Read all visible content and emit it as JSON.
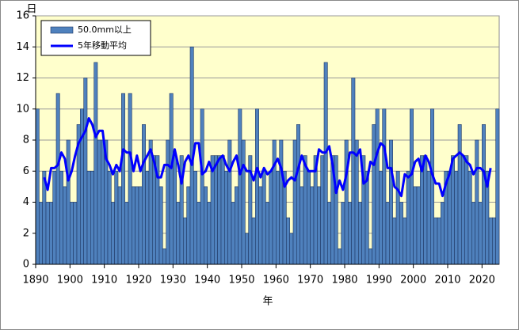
{
  "chart_data": {
    "type": "bar",
    "y_label": "日",
    "x_label": "年",
    "x": [
      1890,
      1891,
      1892,
      1893,
      1894,
      1895,
      1896,
      1897,
      1898,
      1899,
      1900,
      1901,
      1902,
      1903,
      1904,
      1905,
      1906,
      1907,
      1908,
      1909,
      1910,
      1911,
      1912,
      1913,
      1914,
      1915,
      1916,
      1917,
      1918,
      1919,
      1920,
      1921,
      1922,
      1923,
      1924,
      1925,
      1926,
      1927,
      1928,
      1929,
      1930,
      1931,
      1932,
      1933,
      1934,
      1935,
      1936,
      1937,
      1938,
      1939,
      1940,
      1941,
      1942,
      1943,
      1944,
      1945,
      1946,
      1947,
      1948,
      1949,
      1950,
      1951,
      1952,
      1953,
      1954,
      1955,
      1956,
      1957,
      1958,
      1959,
      1960,
      1961,
      1962,
      1963,
      1964,
      1965,
      1966,
      1967,
      1968,
      1969,
      1970,
      1971,
      1972,
      1973,
      1974,
      1975,
      1976,
      1977,
      1978,
      1979,
      1980,
      1981,
      1982,
      1983,
      1984,
      1985,
      1986,
      1987,
      1988,
      1989,
      1990,
      1991,
      1992,
      1993,
      1994,
      1995,
      1996,
      1997,
      1998,
      1999,
      2000,
      2001,
      2002,
      2003,
      2004,
      2005,
      2006,
      2007,
      2008,
      2009,
      2010,
      2011,
      2012,
      2013,
      2014,
      2015,
      2016,
      2017,
      2018,
      2019,
      2020,
      2021,
      2022,
      2023,
      2024
    ],
    "series": [
      {
        "name": "50.0mm以上",
        "type": "bar",
        "color": "#4f81bd",
        "values": [
          10,
          4,
          6,
          4,
          4,
          6,
          11,
          6,
          5,
          8,
          4,
          4,
          9,
          10,
          12,
          6,
          6,
          13,
          8,
          8,
          8,
          6,
          4,
          6,
          5,
          11,
          4,
          11,
          5,
          5,
          5,
          9,
          6,
          8,
          7,
          7,
          5,
          1,
          8,
          11,
          7,
          4,
          7,
          3,
          5,
          14,
          6,
          4,
          10,
          5,
          4,
          7,
          7,
          7,
          7,
          6,
          8,
          4,
          5,
          10,
          8,
          2,
          7,
          3,
          10,
          5,
          6,
          4,
          6,
          8,
          6,
          8,
          6,
          3,
          2,
          8,
          9,
          5,
          7,
          6,
          5,
          7,
          5,
          7,
          13,
          4,
          7,
          7,
          1,
          4,
          8,
          4,
          12,
          8,
          4,
          7,
          6,
          1,
          9,
          10,
          6,
          10,
          4,
          8,
          3,
          6,
          4,
          3,
          6,
          10,
          5,
          5,
          7,
          7,
          6,
          10,
          3,
          3,
          4,
          6,
          6,
          7,
          6,
          9,
          7,
          7,
          6,
          4,
          8,
          4,
          9,
          6,
          3,
          3,
          10
        ]
      },
      {
        "name": "5年移動平均",
        "type": "line",
        "color": "#0000ff",
        "values": [
          null,
          null,
          5.6,
          4.8,
          6.2,
          6.2,
          6.4,
          7.2,
          6.8,
          5.4,
          6.0,
          7.0,
          7.8,
          8.2,
          8.6,
          9.4,
          9.0,
          8.2,
          8.6,
          8.6,
          6.8,
          6.4,
          5.8,
          6.4,
          6.0,
          7.4,
          7.2,
          7.2,
          6.0,
          7.0,
          6.0,
          6.6,
          7.0,
          7.4,
          6.6,
          5.6,
          5.6,
          6.4,
          6.4,
          6.2,
          7.4,
          6.4,
          5.2,
          6.6,
          7.0,
          6.4,
          7.8,
          7.8,
          5.8,
          6.0,
          6.6,
          6.0,
          6.4,
          6.8,
          7.0,
          6.4,
          6.0,
          6.6,
          7.0,
          5.8,
          6.4,
          6.0,
          6.0,
          5.4,
          6.2,
          5.6,
          6.2,
          5.8,
          6.0,
          6.4,
          6.8,
          6.2,
          5.0,
          5.4,
          5.6,
          5.4,
          6.2,
          7.0,
          6.4,
          6.0,
          6.0,
          6.0,
          7.4,
          7.2,
          7.2,
          7.6,
          6.4,
          4.6,
          5.4,
          4.8,
          5.8,
          7.2,
          7.2,
          7.0,
          7.4,
          5.2,
          5.4,
          6.6,
          6.4,
          7.2,
          7.8,
          7.6,
          6.2,
          6.2,
          5.0,
          4.8,
          4.4,
          5.8,
          5.6,
          5.8,
          6.6,
          6.8,
          6.0,
          7.0,
          6.6,
          5.8,
          5.2,
          5.2,
          4.4,
          5.2,
          5.8,
          6.8,
          7.0,
          7.2,
          7.0,
          6.6,
          6.4,
          5.8,
          6.2,
          6.2,
          6.0,
          5.0,
          6.2,
          null,
          null
        ]
      }
    ],
    "xlim": [
      1890,
      2025
    ],
    "xticks": [
      1890,
      1900,
      1910,
      1920,
      1930,
      1940,
      1950,
      1960,
      1970,
      1980,
      1990,
      2000,
      2010,
      2020
    ],
    "ylim": [
      0,
      16
    ],
    "yticks": [
      0,
      2,
      4,
      6,
      8,
      10,
      12,
      14,
      16
    ],
    "grid": true,
    "legend": "upper left",
    "plot_background": "#ffffcc"
  }
}
